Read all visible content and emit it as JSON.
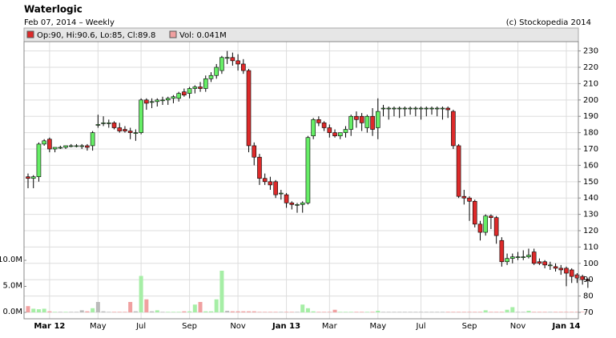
{
  "chart_data": {
    "type": "candlestick",
    "title": "Waterlogic",
    "subtitle": "Feb 07, 2014 – Weekly",
    "source": "(c) Stockopedia 2014",
    "legend_price": "Op:90, Hi:90.6, Lo:85, Cl:89.8",
    "legend_volume": "Vol: 0.041M",
    "up_color": "#66ee66",
    "down_color": "#dd2a2a",
    "volume_up_color": "#a6eea6",
    "volume_down_color": "#f0a0a0",
    "volume_flat_color": "#bbbbbb",
    "grid": true,
    "categories": [
      null,
      null,
      null,
      null,
      "Mar 12",
      null,
      null,
      null,
      null,
      null,
      null,
      null,
      null,
      "May",
      null,
      null,
      null,
      null,
      null,
      null,
      null,
      "Jul",
      null,
      null,
      null,
      null,
      null,
      null,
      null,
      null,
      "Sep",
      null,
      null,
      null,
      null,
      null,
      null,
      null,
      null,
      "Nov",
      null,
      null,
      null,
      null,
      null,
      null,
      null,
      null,
      "Jan 13",
      null,
      null,
      null,
      null,
      null,
      null,
      null,
      "Mar",
      null,
      null,
      null,
      null,
      null,
      null,
      null,
      null,
      "May",
      null,
      null,
      null,
      null,
      null,
      null,
      null,
      "Jul",
      null,
      null,
      null,
      null,
      null,
      null,
      null,
      null,
      "Sep",
      null,
      null,
      null,
      null,
      null,
      null,
      null,
      null,
      "Nov",
      null,
      null,
      null,
      null,
      null,
      null,
      null,
      null,
      "Jan 14",
      null,
      null,
      null,
      null
    ],
    "open": [
      153,
      152,
      153,
      173,
      176,
      170,
      171,
      171,
      172,
      172,
      172,
      172,
      172,
      185,
      186,
      186,
      186,
      183,
      182,
      181,
      180,
      180,
      200,
      199,
      199,
      200,
      200,
      201,
      201,
      205,
      204,
      207,
      208,
      207,
      213,
      215,
      218,
      226,
      226,
      224,
      222,
      218,
      172,
      165,
      152,
      150,
      150,
      143,
      142,
      137,
      136,
      136,
      137,
      178,
      188,
      186,
      183,
      180,
      178,
      180,
      182,
      190,
      190,
      183,
      190,
      183,
      195,
      195,
      195,
      195,
      195,
      195,
      195,
      195,
      195,
      195,
      195,
      195,
      195,
      193,
      172,
      141,
      140,
      138,
      124,
      119,
      129,
      128,
      114,
      101,
      103,
      104,
      104,
      104,
      107,
      101,
      101,
      99,
      98,
      97,
      97,
      96,
      93,
      92,
      90
    ],
    "high": [
      155,
      154,
      174,
      176,
      177,
      171,
      172,
      172,
      173,
      173,
      173,
      173,
      181,
      191,
      190,
      188,
      187,
      186,
      184,
      183,
      182,
      201,
      201,
      201,
      201,
      202,
      202,
      203,
      205,
      207,
      208,
      209,
      211,
      215,
      217,
      222,
      227,
      230,
      229,
      228,
      225,
      219,
      174,
      167,
      155,
      153,
      151,
      145,
      143,
      138,
      137,
      138,
      178,
      189,
      190,
      187,
      185,
      182,
      180,
      184,
      191,
      193,
      192,
      191,
      195,
      201,
      197,
      196,
      196,
      196,
      196,
      196,
      196,
      196,
      196,
      196,
      196,
      196,
      196,
      194,
      173,
      145,
      141,
      139,
      126,
      130,
      130,
      129,
      116,
      106,
      106,
      107,
      108,
      109,
      109,
      103,
      102,
      101,
      100,
      99,
      98,
      97,
      94,
      93,
      90.6
    ],
    "low": [
      146,
      146,
      150,
      172,
      168,
      168,
      170,
      170,
      171,
      171,
      170,
      169,
      169,
      183,
      184,
      183,
      182,
      180,
      180,
      176,
      175,
      179,
      194,
      195,
      196,
      197,
      197,
      198,
      199,
      202,
      201,
      204,
      205,
      205,
      211,
      213,
      216,
      222,
      221,
      218,
      216,
      168,
      160,
      148,
      148,
      145,
      140,
      139,
      134,
      133,
      131,
      131,
      136,
      176,
      184,
      181,
      177,
      177,
      176,
      177,
      178,
      183,
      181,
      180,
      178,
      176,
      190,
      188,
      190,
      189,
      190,
      191,
      190,
      188,
      190,
      191,
      190,
      188,
      189,
      170,
      140,
      136,
      126,
      122,
      114,
      117,
      121,
      112,
      98,
      99,
      100,
      102,
      102,
      103,
      99,
      99,
      97,
      96,
      95,
      93,
      86,
      88,
      88,
      87,
      85
    ],
    "close": [
      152,
      153,
      173,
      175,
      170,
      171,
      171,
      172,
      172,
      172,
      172,
      171,
      180,
      185,
      186,
      186,
      183,
      181,
      181,
      180,
      180,
      200,
      198,
      199,
      200,
      200,
      201,
      202,
      204,
      203,
      207,
      208,
      207,
      213,
      215,
      220,
      226,
      226,
      224,
      222,
      218,
      172,
      165,
      152,
      150,
      148,
      142,
      143,
      137,
      136,
      136,
      137,
      177,
      188,
      186,
      183,
      180,
      178,
      180,
      182,
      190,
      188,
      186,
      190,
      182,
      193,
      195,
      195,
      195,
      195,
      195,
      195,
      195,
      195,
      195,
      195,
      195,
      195,
      194,
      172,
      141,
      140,
      138,
      124,
      119,
      129,
      128,
      117,
      101,
      103,
      104,
      104,
      104,
      105,
      100,
      100,
      99,
      99,
      97,
      96,
      94,
      92,
      91,
      90,
      89.8
    ],
    "volume": [
      1.2,
      0.7,
      0.6,
      0.7,
      0.2,
      0.1,
      0.1,
      0.1,
      0.1,
      0.1,
      0.4,
      0.2,
      0.8,
      2.0,
      0.2,
      0.1,
      0.1,
      0.1,
      0.1,
      2.0,
      0.2,
      7.0,
      2.5,
      0.2,
      0.4,
      0.1,
      0.1,
      0.1,
      0.1,
      0.2,
      0.2,
      1.5,
      2.0,
      0.2,
      0.2,
      2.5,
      8.0,
      0.3,
      0.2,
      0.2,
      0.2,
      0.2,
      0.2,
      0.1,
      0.1,
      0.1,
      0.1,
      0.1,
      0.1,
      0.1,
      0.1,
      1.5,
      0.8,
      0.2,
      0.1,
      0.1,
      0.1,
      0.5,
      0.1,
      0.1,
      0.1,
      0.1,
      0.1,
      0.1,
      0.1,
      0.3,
      0.1,
      0.1,
      0.1,
      0.1,
      0.1,
      0.1,
      0.1,
      0.1,
      0.1,
      0.1,
      0.1,
      0.1,
      0.1,
      0.1,
      0.1,
      0.1,
      0.1,
      0.1,
      0.1,
      0.4,
      0.1,
      0.1,
      0.1,
      0.5,
      1.0,
      0.1,
      0.1,
      0.3,
      0.1,
      0.1,
      0.1,
      0.1,
      0.1,
      0.1,
      0.1,
      0.1,
      0.1,
      0.1,
      0.041
    ],
    "ylim": [
      70,
      235.7
    ],
    "yticks": [
      70,
      80,
      90,
      100,
      110,
      120,
      130,
      140,
      150,
      160,
      170,
      180,
      190,
      200,
      210,
      220,
      230
    ],
    "volume_ylim": [
      0,
      52
    ],
    "volume_ticks": [
      {
        "value": 0,
        "label": "0.0M"
      },
      {
        "value": 5,
        "label": "5.0M"
      },
      {
        "value": 10,
        "label": "10.0M"
      }
    ]
  }
}
